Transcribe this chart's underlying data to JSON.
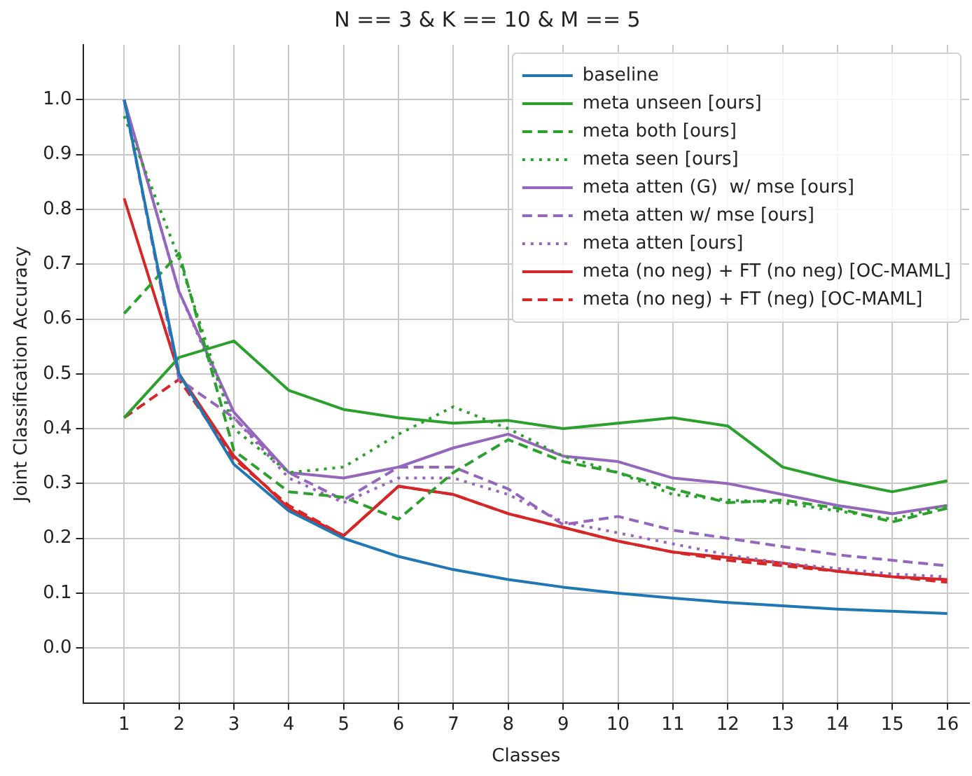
{
  "chart_data": {
    "type": "line",
    "title": "N == 3 & K == 10 & M == 5",
    "xlabel": "Classes",
    "ylabel": "Joint Classification Accuracy",
    "x": [
      1,
      2,
      3,
      4,
      5,
      6,
      7,
      8,
      9,
      10,
      11,
      12,
      13,
      14,
      15,
      16
    ],
    "xlim": [
      0.25,
      16.4
    ],
    "xticks": [
      1,
      2,
      3,
      4,
      5,
      6,
      7,
      8,
      9,
      10,
      11,
      12,
      13,
      14,
      15,
      16
    ],
    "ylim": [
      -0.1,
      1.1
    ],
    "yticks": [
      {
        "value": 0,
        "label": "0.0"
      },
      {
        "value": 0.1,
        "label": "0.1"
      },
      {
        "value": 0.2,
        "label": "0.2"
      },
      {
        "value": 0.3,
        "label": "0.3"
      },
      {
        "value": 0.4,
        "label": "0.4"
      },
      {
        "value": 0.5,
        "label": "0.5"
      },
      {
        "value": 0.6,
        "label": "0.6"
      },
      {
        "value": 0.7,
        "label": "0.7"
      },
      {
        "value": 0.8,
        "label": "0.8"
      },
      {
        "value": 0.9,
        "label": "0.9"
      },
      {
        "value": 1,
        "label": "1.0"
      }
    ],
    "grid": true,
    "legend": "top right",
    "marker": "none",
    "series": [
      {
        "name": "baseline",
        "color": "#1f77b4",
        "line_style": "solid",
        "values": [
          1.0,
          0.5,
          0.335,
          0.25,
          0.2,
          0.167,
          0.143,
          0.125,
          0.111,
          0.1,
          0.091,
          0.083,
          0.077,
          0.071,
          0.067,
          0.063
        ]
      },
      {
        "name": "meta unseen [ours]",
        "color": "#2ca02c",
        "line_style": "solid",
        "values": [
          0.42,
          0.53,
          0.56,
          0.47,
          0.435,
          0.42,
          0.41,
          0.415,
          0.4,
          0.41,
          0.42,
          0.405,
          0.33,
          0.305,
          0.285,
          0.305
        ]
      },
      {
        "name": "meta both [ours]",
        "color": "#2ca02c",
        "line_style": "dashed",
        "values": [
          0.61,
          0.72,
          0.36,
          0.285,
          0.275,
          0.235,
          0.32,
          0.38,
          0.34,
          0.32,
          0.29,
          0.265,
          0.27,
          0.255,
          0.23,
          0.255
        ]
      },
      {
        "name": "meta seen [ours]",
        "color": "#2ca02c",
        "line_style": "dotted",
        "values": [
          0.97,
          0.71,
          0.4,
          0.32,
          0.33,
          0.39,
          0.44,
          0.4,
          0.35,
          0.32,
          0.28,
          0.27,
          0.265,
          0.25,
          0.235,
          0.26
        ]
      },
      {
        "name": "meta atten (G)  w/ mse [ours]",
        "color": "#9467bd",
        "line_style": "solid",
        "values": [
          1.0,
          0.65,
          0.43,
          0.32,
          0.31,
          0.33,
          0.365,
          0.39,
          0.35,
          0.34,
          0.31,
          0.3,
          0.28,
          0.26,
          0.245,
          0.26
        ]
      },
      {
        "name": "meta atten w/ mse [ours]",
        "color": "#9467bd",
        "line_style": "dashed",
        "values": [
          1.0,
          0.49,
          0.42,
          0.32,
          0.27,
          0.33,
          0.33,
          0.29,
          0.225,
          0.24,
          0.215,
          0.2,
          0.185,
          0.17,
          0.16,
          0.15
        ]
      },
      {
        "name": "meta atten [ours]",
        "color": "#9467bd",
        "line_style": "dotted",
        "values": [
          1.0,
          0.65,
          0.42,
          0.31,
          0.265,
          0.31,
          0.31,
          0.28,
          0.23,
          0.21,
          0.19,
          0.17,
          0.155,
          0.145,
          0.135,
          0.13
        ]
      },
      {
        "name": "meta (no neg) + FT (no neg) [OC-MAML]",
        "color": "#d62728",
        "line_style": "solid",
        "values": [
          0.82,
          0.5,
          0.35,
          0.255,
          0.205,
          0.295,
          0.28,
          0.245,
          0.22,
          0.195,
          0.175,
          0.165,
          0.155,
          0.14,
          0.13,
          0.125
        ]
      },
      {
        "name": "meta (no neg) + FT (neg) [OC-MAML]",
        "color": "#d62728",
        "line_style": "dashed",
        "values": [
          0.42,
          0.49,
          0.345,
          0.26,
          0.205,
          0.295,
          0.28,
          0.245,
          0.22,
          0.195,
          0.175,
          0.16,
          0.15,
          0.14,
          0.13,
          0.12
        ]
      }
    ]
  }
}
